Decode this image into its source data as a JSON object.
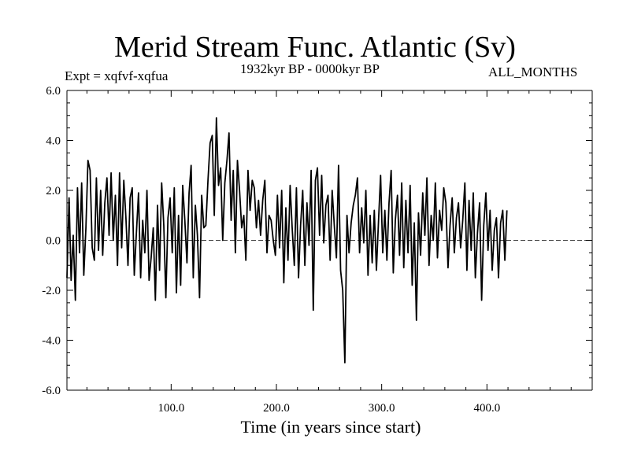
{
  "chart_data": {
    "type": "line",
    "title": "Merid Stream Func. Atlantic (Sv)",
    "subtitle": "1932kyr BP - 0000kyr BP",
    "left_label": "Expt = xqfvf-xqfua",
    "right_label": "ALL_MONTHS",
    "xlabel": "Time (in years since start)",
    "ylabel": "",
    "xlim": [
      1,
      500
    ],
    "ylim": [
      -6,
      6
    ],
    "x_ticks": [
      100,
      200,
      300,
      400
    ],
    "x_tick_labels": [
      "100.0",
      "200.0",
      "300.0",
      "400.0"
    ],
    "y_ticks": [
      -6,
      -4,
      -2,
      0,
      2,
      4,
      6
    ],
    "y_tick_labels": [
      "-6.0",
      "-4.0",
      "-2.0",
      "0.0",
      "2.0",
      "4.0",
      "6.0"
    ],
    "reference_line": 0,
    "series": [
      {
        "name": "Merid Stream Func. Atlantic",
        "x_step": 2,
        "x_start": 1,
        "values": [
          -1.5,
          1.7,
          -1.6,
          0.2,
          -2.4,
          2.1,
          -0.5,
          2.3,
          -1.4,
          0.5,
          3.2,
          2.8,
          -0.3,
          -0.8,
          2.5,
          -0.4,
          2.0,
          -0.6,
          1.5,
          2.5,
          0.2,
          2.7,
          0.0,
          1.8,
          -1.0,
          2.7,
          -0.3,
          2.4,
          0.9,
          -1.0,
          1.7,
          2.1,
          -1.4,
          0.3,
          1.9,
          -1.5,
          0.8,
          -0.5,
          2.0,
          -1.6,
          -0.7,
          0.5,
          -2.4,
          1.4,
          -1.2,
          2.3,
          0.6,
          -2.3,
          0.9,
          1.7,
          -0.5,
          2.1,
          -2.1,
          1.0,
          -1.8,
          2.2,
          0.8,
          -0.9,
          1.9,
          3.0,
          -1.5,
          1.4,
          0.2,
          -2.3,
          1.8,
          0.5,
          0.6,
          2.4,
          3.9,
          4.2,
          1.0,
          4.9,
          2.2,
          2.9,
          0.0,
          2.3,
          3.2,
          4.3,
          0.8,
          2.8,
          -0.5,
          3.2,
          2.0,
          0.5,
          1.0,
          -0.8,
          2.8,
          1.2,
          2.4,
          2.1,
          0.5,
          1.6,
          0.2,
          1.6,
          2.4,
          -0.5,
          1.0,
          0.8,
          0.0,
          -0.6,
          1.8,
          -0.3,
          2.0,
          -1.7,
          1.3,
          -0.8,
          2.2,
          0.5,
          -1.0,
          2.1,
          -1.5,
          0.6,
          2.0,
          -1.0,
          1.5,
          -0.2,
          2.8,
          -2.8,
          2.4,
          2.9,
          0.2,
          2.6,
          -0.1,
          1.4,
          1.8,
          -0.8,
          2.0,
          0.6,
          -0.7,
          3.0,
          -1.2,
          -2.0,
          -4.9,
          1.0,
          -0.5,
          0.7,
          1.4,
          1.8,
          2.5,
          -0.5,
          1.3,
          -0.1,
          2.0,
          -1.4,
          1.0,
          -0.9,
          1.2,
          -1.2,
          0.8,
          2.6,
          -0.5,
          1.2,
          -0.8,
          1.5,
          2.8,
          -1.3,
          0.8,
          1.8,
          -0.6,
          2.3,
          -1.1,
          1.6,
          -0.5,
          2.2,
          -1.8,
          0.7,
          -3.2,
          1.1,
          -0.6,
          1.9,
          0.2,
          2.5,
          -1.0,
          1.0,
          0.0,
          2.3,
          -0.7,
          1.2,
          0.4,
          2.1,
          1.5,
          -1.1,
          0.6,
          1.7,
          -0.5,
          0.9,
          1.5,
          -0.3,
          0.8,
          2.3,
          -1.2,
          1.6,
          -0.4,
          1.9,
          -1.5,
          0.3,
          1.5,
          -2.4,
          0.6,
          1.9,
          -0.4,
          1.2,
          -1.2,
          0.4,
          0.9,
          -1.5,
          0.7,
          1.2,
          -0.8,
          1.2
        ]
      }
    ]
  }
}
